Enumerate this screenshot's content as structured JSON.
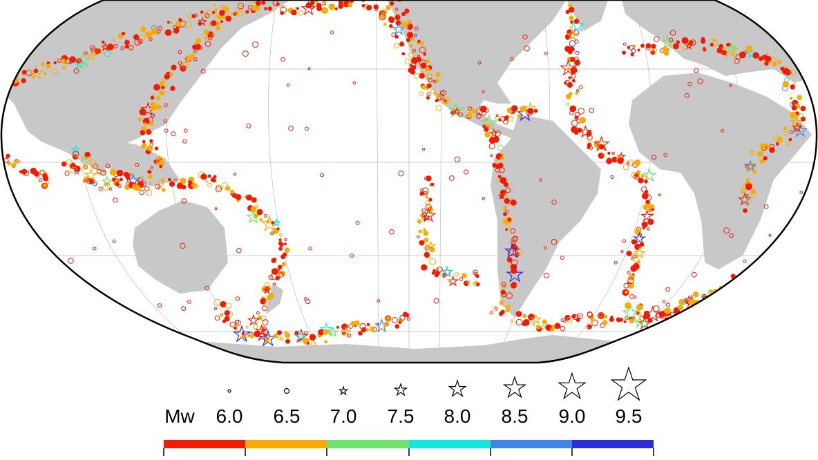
{
  "legend": {
    "title": "Mw",
    "magnitudes": [
      "6.0",
      "6.5",
      "7.0",
      "7.5",
      "8.0",
      "8.5",
      "9.0",
      "9.5"
    ]
  }
}
